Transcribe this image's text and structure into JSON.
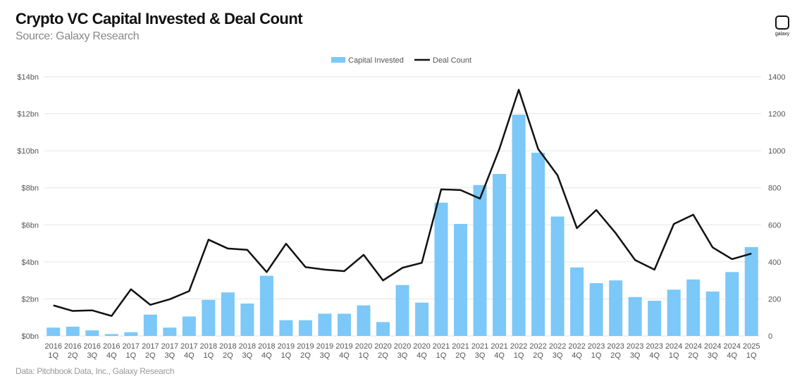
{
  "title": "Crypto VC Capital Invested & Deal Count",
  "subtitle": "Source: Galaxy Research",
  "footer": "Data: Pitchbook Data, Inc., Galaxy Research",
  "logo": {
    "text": "galaxy"
  },
  "colors": {
    "bar": "#7cc8f8",
    "line": "#111111",
    "grid": "#e6e6e6"
  },
  "chart_data": {
    "type": "bar+line",
    "title": "Crypto VC Capital Invested & Deal Count",
    "legend_position": "top",
    "grid": true,
    "categories": [
      [
        "2016",
        "1Q"
      ],
      [
        "2016",
        "2Q"
      ],
      [
        "2016",
        "3Q"
      ],
      [
        "2016",
        "4Q"
      ],
      [
        "2017",
        "1Q"
      ],
      [
        "2017",
        "2Q"
      ],
      [
        "2017",
        "3Q"
      ],
      [
        "2017",
        "4Q"
      ],
      [
        "2018",
        "1Q"
      ],
      [
        "2018",
        "2Q"
      ],
      [
        "2018",
        "3Q"
      ],
      [
        "2018",
        "4Q"
      ],
      [
        "2019",
        "1Q"
      ],
      [
        "2019",
        "2Q"
      ],
      [
        "2019",
        "3Q"
      ],
      [
        "2019",
        "4Q"
      ],
      [
        "2020",
        "1Q"
      ],
      [
        "2020",
        "2Q"
      ],
      [
        "2020",
        "3Q"
      ],
      [
        "2020",
        "4Q"
      ],
      [
        "2021",
        "1Q"
      ],
      [
        "2021",
        "2Q"
      ],
      [
        "2021",
        "3Q"
      ],
      [
        "2021",
        "4Q"
      ],
      [
        "2022",
        "1Q"
      ],
      [
        "2022",
        "2Q"
      ],
      [
        "2022",
        "3Q"
      ],
      [
        "2022",
        "4Q"
      ],
      [
        "2023",
        "1Q"
      ],
      [
        "2023",
        "2Q"
      ],
      [
        "2023",
        "3Q"
      ],
      [
        "2023",
        "4Q"
      ],
      [
        "2024",
        "1Q"
      ],
      [
        "2024",
        "2Q"
      ],
      [
        "2024",
        "3Q"
      ],
      [
        "2024",
        "4Q"
      ],
      [
        "2025",
        "1Q"
      ]
    ],
    "series": [
      {
        "name": "Capital Invested",
        "type": "bar",
        "axis": "left",
        "values": [
          0.45,
          0.5,
          0.3,
          0.1,
          0.2,
          1.15,
          0.45,
          1.05,
          1.95,
          2.35,
          1.75,
          3.25,
          0.85,
          0.85,
          1.2,
          1.2,
          1.65,
          0.75,
          2.75,
          1.8,
          7.2,
          6.05,
          8.15,
          8.75,
          11.95,
          9.9,
          6.45,
          3.7,
          2.85,
          3.0,
          2.1,
          1.9,
          2.5,
          3.05,
          2.4,
          3.45,
          4.8
        ]
      },
      {
        "name": "Deal Count",
        "type": "line",
        "axis": "right",
        "values": [
          165,
          135,
          138,
          108,
          252,
          168,
          198,
          242,
          520,
          472,
          465,
          345,
          498,
          372,
          358,
          350,
          438,
          300,
          368,
          395,
          792,
          788,
          742,
          1010,
          1330,
          1010,
          868,
          582,
          680,
          555,
          410,
          358,
          605,
          655,
          478,
          415,
          445
        ]
      }
    ],
    "y_left": {
      "range": [
        0,
        14
      ],
      "ticks": [
        "$0bn",
        "$2bn",
        "$4bn",
        "$6bn",
        "$8bn",
        "$10bn",
        "$12bn",
        "$14bn"
      ]
    },
    "y_right": {
      "range": [
        0,
        1400
      ],
      "ticks": [
        "0",
        "200",
        "400",
        "600",
        "800",
        "1000",
        "1200",
        "1400"
      ]
    }
  }
}
